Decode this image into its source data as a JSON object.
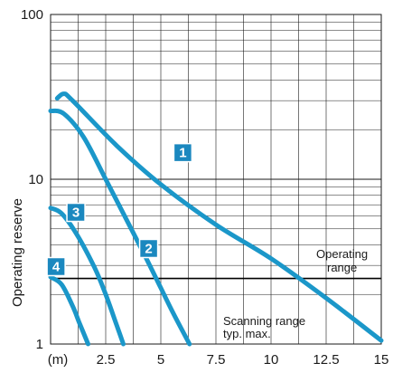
{
  "chart_data": {
    "type": "line",
    "title": "",
    "ylabel": "Operating reserve",
    "xlabel": "",
    "x_unit_label": "(m)",
    "x_scale": "linear",
    "y_scale": "log",
    "xlim": [
      0,
      15
    ],
    "ylim": [
      1,
      100
    ],
    "x_ticks": [
      2.5,
      5,
      7.5,
      10,
      12.5,
      15
    ],
    "x_tick_labels": [
      "2.5",
      "5",
      "7.5",
      "10",
      "12.5",
      "15"
    ],
    "y_ticks": [
      1,
      10,
      100
    ],
    "y_tick_labels": [
      "1",
      "10",
      "100"
    ],
    "grid": true,
    "line_color": "#1b97c9",
    "badge_color": "#1b88bf",
    "threshold": {
      "y": 2.5,
      "label_top": "Operating",
      "label_bottom": "range"
    },
    "annotation": {
      "line1": "Scanning range",
      "line2": "typ. max."
    },
    "series": [
      {
        "name": "1",
        "x": [
          0.3,
          0.6,
          1.0,
          3.0,
          5.0,
          7.5,
          10.0,
          12.5,
          15.0
        ],
        "y": [
          31,
          33,
          30,
          16,
          9.3,
          5.3,
          3.3,
          1.9,
          1.05
        ]
      },
      {
        "name": "2",
        "x": [
          0.0,
          0.6,
          1.5,
          2.5,
          3.5,
          4.5,
          5.5,
          6.3
        ],
        "y": [
          26,
          25,
          18,
          10,
          5.5,
          3.0,
          1.6,
          1.0
        ]
      },
      {
        "name": "3",
        "x": [
          0.0,
          0.5,
          1.2,
          2.0,
          2.5,
          3.0,
          3.3
        ],
        "y": [
          6.7,
          6.2,
          4.6,
          2.9,
          2.0,
          1.3,
          1.0
        ]
      },
      {
        "name": "4",
        "x": [
          0.0,
          0.5,
          1.0,
          1.3,
          1.7
        ],
        "y": [
          2.55,
          2.3,
          1.7,
          1.35,
          1.0
        ]
      }
    ]
  }
}
